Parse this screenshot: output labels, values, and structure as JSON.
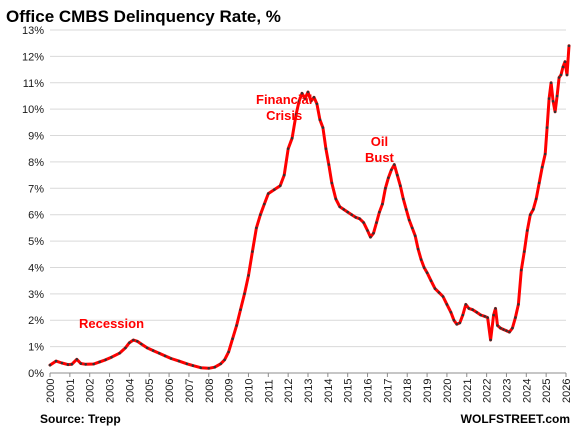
{
  "chart_data": {
    "type": "line",
    "title": "Office CMBS Delinquency Rate, %",
    "source": "Source: Trepp",
    "brand": "WOLFSTREET.com",
    "xlabel": "",
    "ylabel": "",
    "ylim": [
      0,
      13
    ],
    "y_ticks": [
      "0%",
      "1%",
      "2%",
      "3%",
      "4%",
      "5%",
      "6%",
      "7%",
      "8%",
      "9%",
      "10%",
      "11%",
      "12%",
      "13%"
    ],
    "x_ticks": [
      "2000",
      "2001",
      "2002",
      "2003",
      "2004",
      "2005",
      "2006",
      "2007",
      "2008",
      "2009",
      "2010",
      "2011",
      "2012",
      "2013",
      "2014",
      "2015",
      "2016",
      "2017",
      "2018",
      "2019",
      "2020",
      "2021",
      "2022",
      "2023",
      "2024",
      "2025",
      "2026"
    ],
    "xlim": [
      2000,
      2026
    ],
    "grid": true,
    "line_color": "#ff0000",
    "marker_color": "#333333",
    "annotation_color": "#ff0000",
    "annotations": [
      {
        "lines": [
          "Recession"
        ],
        "x": 2003.1,
        "y": 1.7
      },
      {
        "lines": [
          "Financial",
          "Crisis"
        ],
        "x": 2011.8,
        "y": 10.2
      },
      {
        "lines": [
          "Oil",
          "Bust"
        ],
        "x": 2016.6,
        "y": 8.6
      }
    ],
    "series": [
      {
        "points": [
          [
            2000.0,
            0.3
          ],
          [
            2000.3,
            0.45
          ],
          [
            2000.6,
            0.38
          ],
          [
            2000.9,
            0.32
          ],
          [
            2001.1,
            0.33
          ],
          [
            2001.35,
            0.52
          ],
          [
            2001.55,
            0.36
          ],
          [
            2001.8,
            0.33
          ],
          [
            2002.2,
            0.34
          ],
          [
            2002.5,
            0.42
          ],
          [
            2002.8,
            0.5
          ],
          [
            2003.1,
            0.6
          ],
          [
            2003.5,
            0.75
          ],
          [
            2003.8,
            0.95
          ],
          [
            2004.0,
            1.15
          ],
          [
            2004.2,
            1.25
          ],
          [
            2004.4,
            1.2
          ],
          [
            2004.6,
            1.1
          ],
          [
            2004.9,
            0.95
          ],
          [
            2005.2,
            0.85
          ],
          [
            2005.5,
            0.75
          ],
          [
            2005.8,
            0.65
          ],
          [
            2006.1,
            0.55
          ],
          [
            2006.5,
            0.45
          ],
          [
            2006.9,
            0.35
          ],
          [
            2007.2,
            0.28
          ],
          [
            2007.6,
            0.2
          ],
          [
            2008.0,
            0.18
          ],
          [
            2008.3,
            0.22
          ],
          [
            2008.6,
            0.35
          ],
          [
            2008.8,
            0.5
          ],
          [
            2009.0,
            0.8
          ],
          [
            2009.2,
            1.3
          ],
          [
            2009.4,
            1.8
          ],
          [
            2009.6,
            2.4
          ],
          [
            2009.8,
            3.0
          ],
          [
            2010.0,
            3.7
          ],
          [
            2010.2,
            4.6
          ],
          [
            2010.4,
            5.5
          ],
          [
            2010.6,
            6.0
          ],
          [
            2010.8,
            6.4
          ],
          [
            2011.0,
            6.8
          ],
          [
            2011.3,
            6.95
          ],
          [
            2011.6,
            7.1
          ],
          [
            2011.8,
            7.5
          ],
          [
            2012.0,
            8.5
          ],
          [
            2012.2,
            8.9
          ],
          [
            2012.4,
            9.8
          ],
          [
            2012.55,
            10.3
          ],
          [
            2012.7,
            10.6
          ],
          [
            2012.85,
            10.4
          ],
          [
            2013.0,
            10.65
          ],
          [
            2013.15,
            10.3
          ],
          [
            2013.3,
            10.45
          ],
          [
            2013.45,
            10.2
          ],
          [
            2013.6,
            9.6
          ],
          [
            2013.75,
            9.3
          ],
          [
            2013.9,
            8.5
          ],
          [
            2014.05,
            7.9
          ],
          [
            2014.2,
            7.2
          ],
          [
            2014.4,
            6.6
          ],
          [
            2014.6,
            6.3
          ],
          [
            2014.8,
            6.2
          ],
          [
            2015.0,
            6.1
          ],
          [
            2015.2,
            6.0
          ],
          [
            2015.4,
            5.9
          ],
          [
            2015.6,
            5.85
          ],
          [
            2015.8,
            5.7
          ],
          [
            2016.0,
            5.4
          ],
          [
            2016.15,
            5.15
          ],
          [
            2016.3,
            5.3
          ],
          [
            2016.45,
            5.7
          ],
          [
            2016.6,
            6.1
          ],
          [
            2016.75,
            6.4
          ],
          [
            2016.9,
            7.0
          ],
          [
            2017.05,
            7.4
          ],
          [
            2017.2,
            7.7
          ],
          [
            2017.35,
            7.9
          ],
          [
            2017.5,
            7.5
          ],
          [
            2017.65,
            7.1
          ],
          [
            2017.8,
            6.6
          ],
          [
            2017.95,
            6.2
          ],
          [
            2018.1,
            5.8
          ],
          [
            2018.25,
            5.5
          ],
          [
            2018.4,
            5.2
          ],
          [
            2018.55,
            4.7
          ],
          [
            2018.7,
            4.3
          ],
          [
            2018.85,
            4.0
          ],
          [
            2019.0,
            3.8
          ],
          [
            2019.2,
            3.5
          ],
          [
            2019.4,
            3.2
          ],
          [
            2019.6,
            3.05
          ],
          [
            2019.8,
            2.9
          ],
          [
            2020.0,
            2.6
          ],
          [
            2020.2,
            2.3
          ],
          [
            2020.35,
            2.0
          ],
          [
            2020.5,
            1.85
          ],
          [
            2020.65,
            1.9
          ],
          [
            2020.8,
            2.2
          ],
          [
            2020.95,
            2.6
          ],
          [
            2021.1,
            2.45
          ],
          [
            2021.3,
            2.4
          ],
          [
            2021.5,
            2.3
          ],
          [
            2021.7,
            2.2
          ],
          [
            2021.9,
            2.15
          ],
          [
            2022.05,
            2.1
          ],
          [
            2022.2,
            1.25
          ],
          [
            2022.35,
            2.2
          ],
          [
            2022.45,
            2.45
          ],
          [
            2022.55,
            1.8
          ],
          [
            2022.7,
            1.7
          ],
          [
            2022.85,
            1.65
          ],
          [
            2023.0,
            1.6
          ],
          [
            2023.15,
            1.55
          ],
          [
            2023.3,
            1.7
          ],
          [
            2023.45,
            2.1
          ],
          [
            2023.6,
            2.6
          ],
          [
            2023.75,
            3.9
          ],
          [
            2023.9,
            4.6
          ],
          [
            2024.05,
            5.4
          ],
          [
            2024.2,
            6.0
          ],
          [
            2024.35,
            6.2
          ],
          [
            2024.5,
            6.6
          ],
          [
            2024.65,
            7.2
          ],
          [
            2024.8,
            7.8
          ],
          [
            2024.95,
            8.3
          ],
          [
            2025.05,
            9.3
          ],
          [
            2025.15,
            10.4
          ],
          [
            2025.25,
            11.0
          ],
          [
            2025.35,
            10.3
          ],
          [
            2025.45,
            9.9
          ],
          [
            2025.55,
            10.5
          ],
          [
            2025.65,
            11.2
          ],
          [
            2025.75,
            11.3
          ],
          [
            2025.85,
            11.6
          ],
          [
            2025.95,
            11.8
          ],
          [
            2026.05,
            11.3
          ],
          [
            2026.15,
            12.4
          ]
        ]
      }
    ]
  }
}
